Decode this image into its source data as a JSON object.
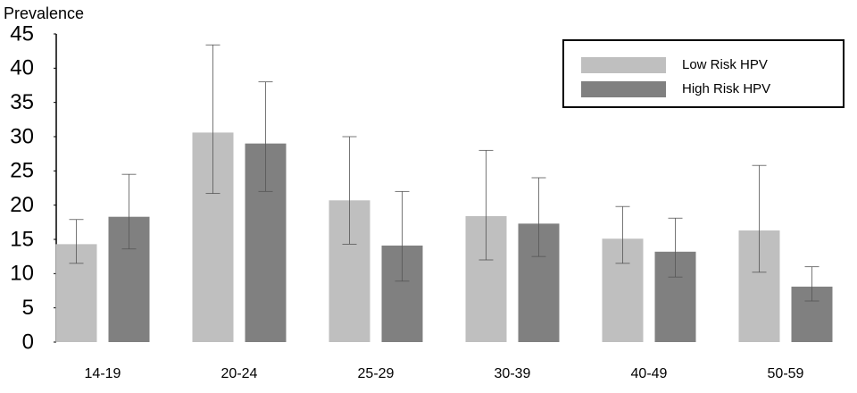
{
  "chart_data": {
    "type": "bar",
    "y_label": "Prevalence",
    "categories": [
      "14-19",
      "20-24",
      "25-29",
      "30-39",
      "40-49",
      "50-59"
    ],
    "series": [
      {
        "name": "Low Risk HPV",
        "color": "#bfbfbf",
        "values": [
          14.3,
          30.6,
          20.7,
          18.4,
          15.1,
          16.3
        ],
        "ci_low": [
          11.5,
          21.7,
          14.3,
          12.0,
          11.5,
          10.2
        ],
        "ci_high": [
          17.9,
          43.4,
          30.0,
          28.0,
          19.8,
          25.8
        ]
      },
      {
        "name": "High Risk HPV",
        "color": "#808080",
        "values": [
          18.3,
          29.0,
          14.1,
          17.3,
          13.2,
          8.1
        ],
        "ci_low": [
          13.6,
          22.0,
          8.9,
          12.5,
          9.5,
          6.0
        ],
        "ci_high": [
          24.5,
          38.0,
          22.0,
          24.0,
          18.1,
          11.0
        ]
      }
    ],
    "ylim": [
      0,
      45
    ],
    "yticks": [
      0,
      5,
      10,
      15,
      20,
      25,
      30,
      35,
      40,
      45
    ],
    "grid": false,
    "legend": "top-right"
  }
}
